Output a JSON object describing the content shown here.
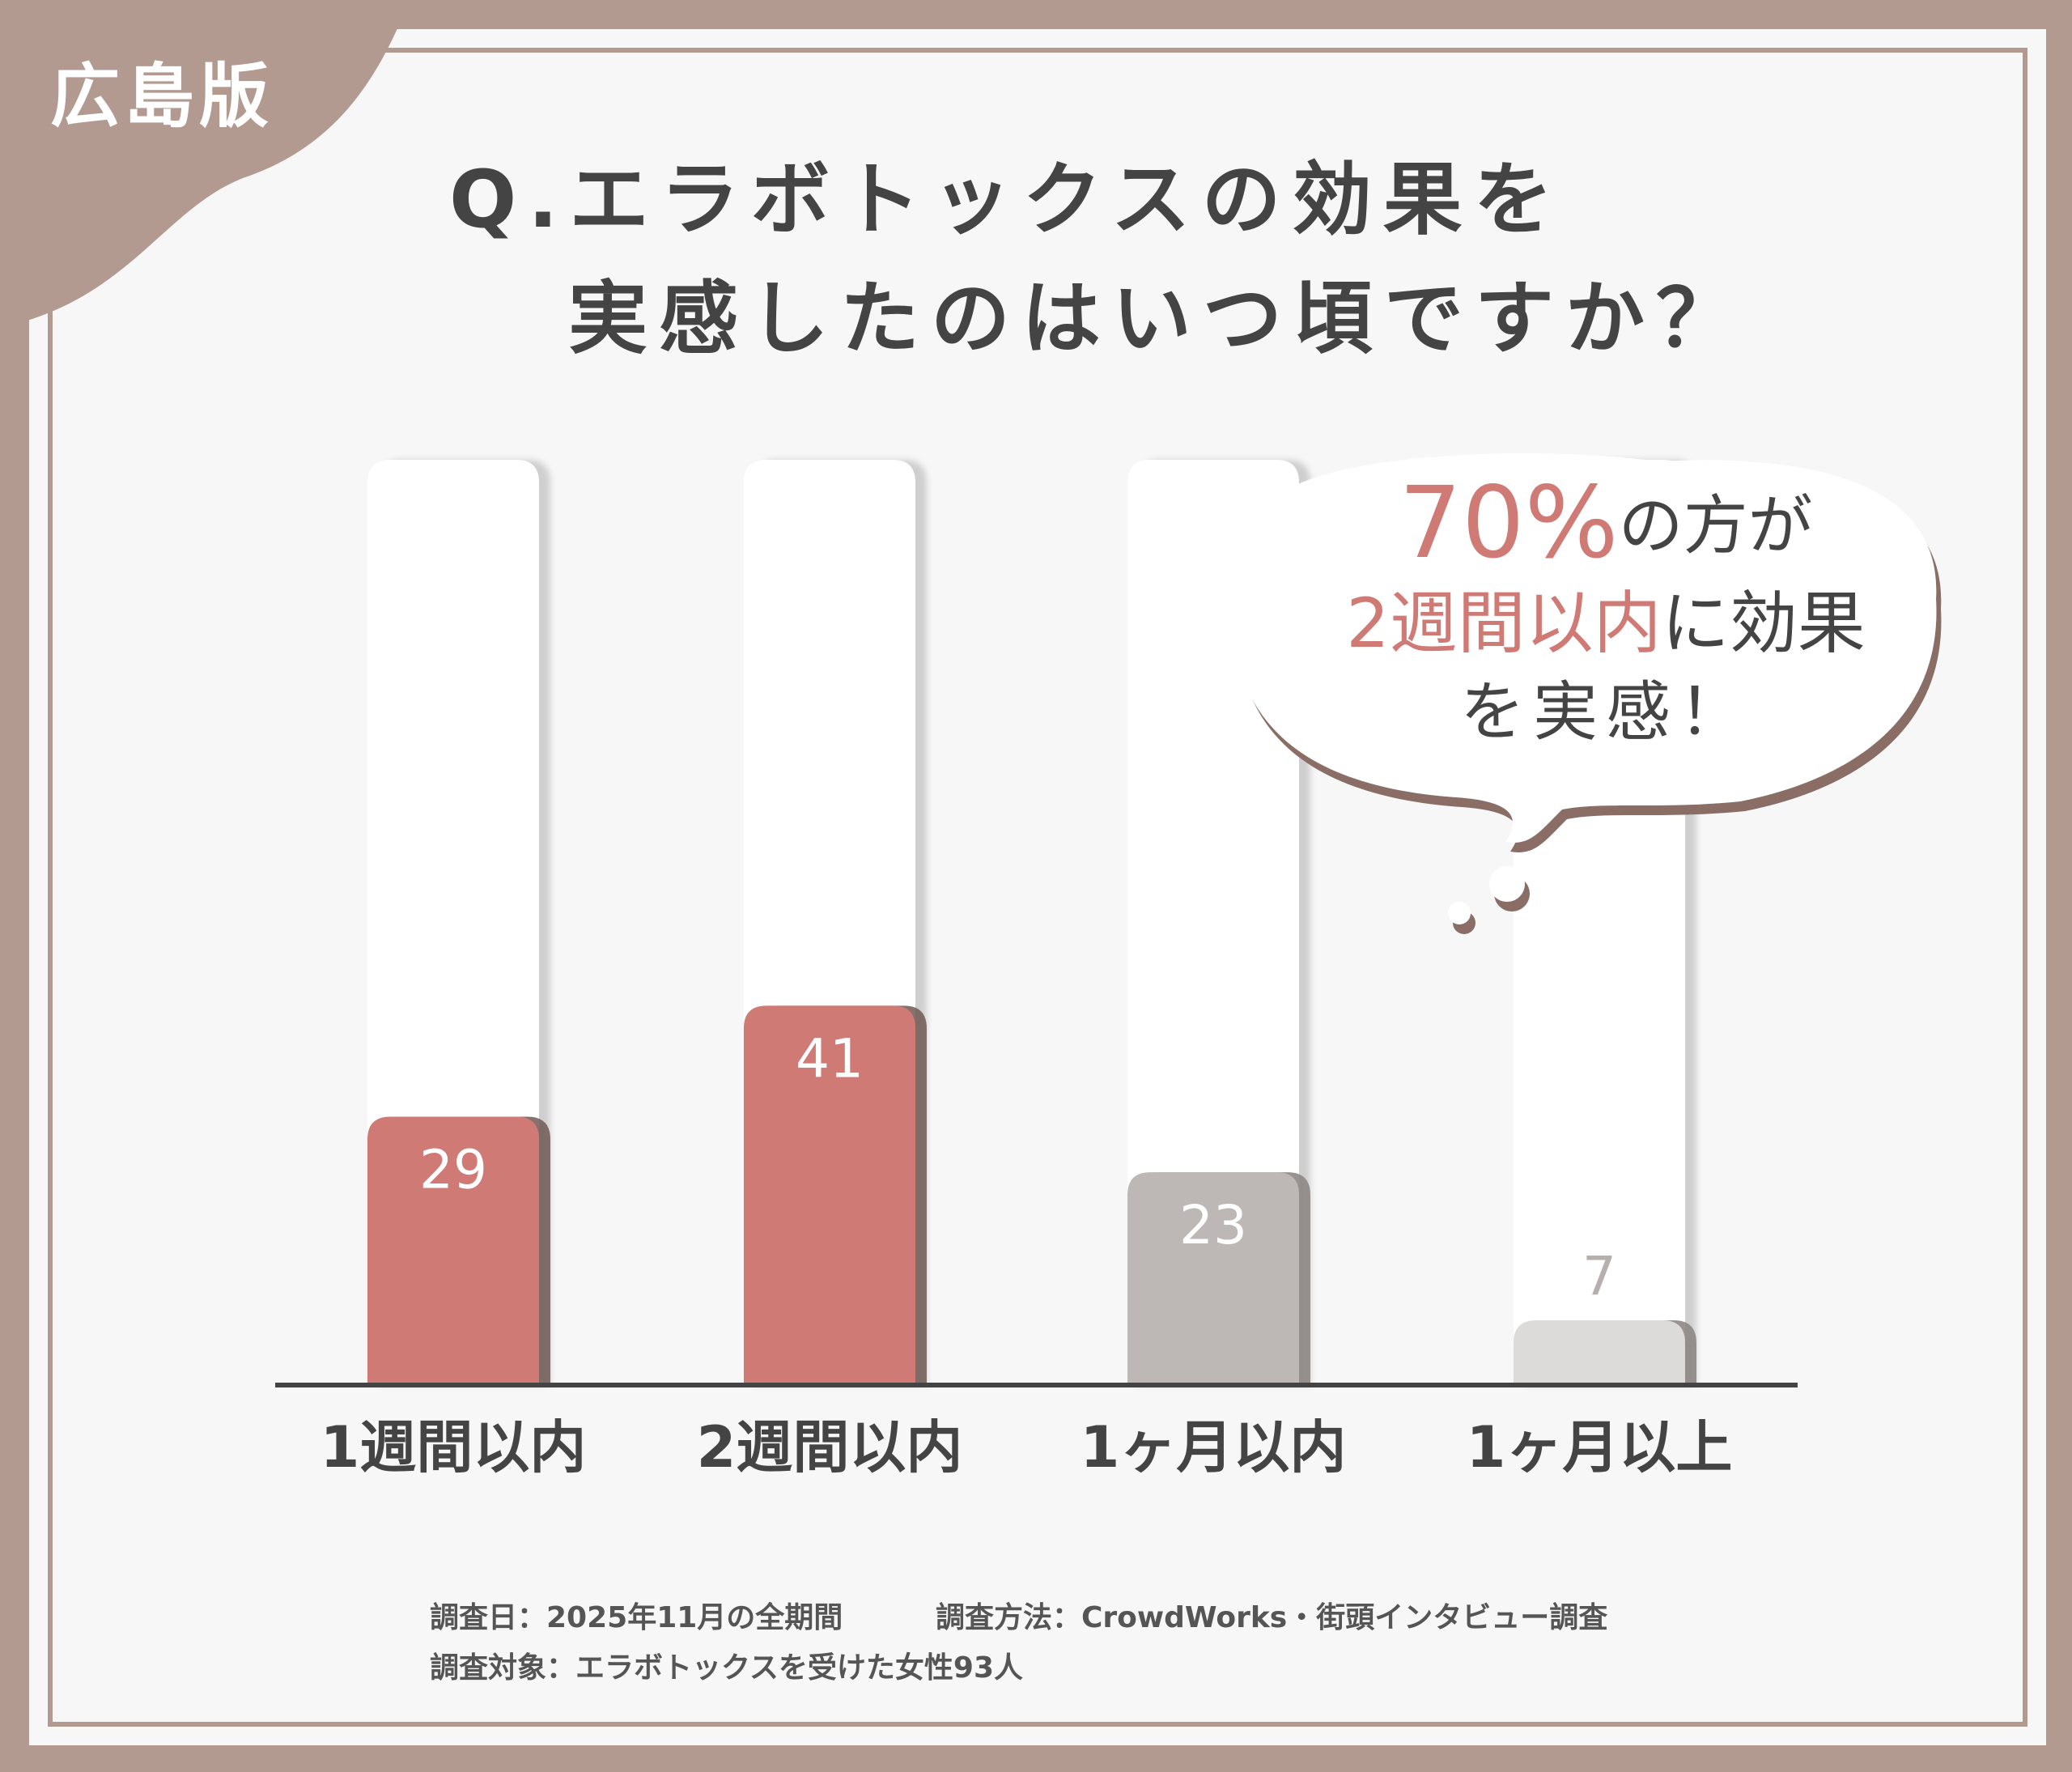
{
  "badge": "広島版",
  "chart_data": {
    "type": "bar",
    "title": [
      "Q.エラボトックスの効果を",
      "実感したのはいつ頃ですか？"
    ],
    "categories": [
      "1週間以内",
      "2週間以内",
      "1ヶ月以内",
      "1ヶ月以上"
    ],
    "values": [
      29,
      41,
      23,
      7
    ],
    "colors": [
      "#cf7a74",
      "#cf7a74",
      "#bdb8b5",
      "#dddbd9"
    ],
    "ylim": [
      0,
      100
    ],
    "callout": {
      "highlight": "70%",
      "line1": "の方が",
      "highlight2": "2週間以内",
      "line2": "に効果",
      "line3": "を実感！"
    }
  },
  "notes": [
    "調査日：2025年11月の全期間",
    "調査方法：CrowdWorks・街頭インタビュー調査",
    "調査対象：エラボトックスを受けた女性93人"
  ]
}
